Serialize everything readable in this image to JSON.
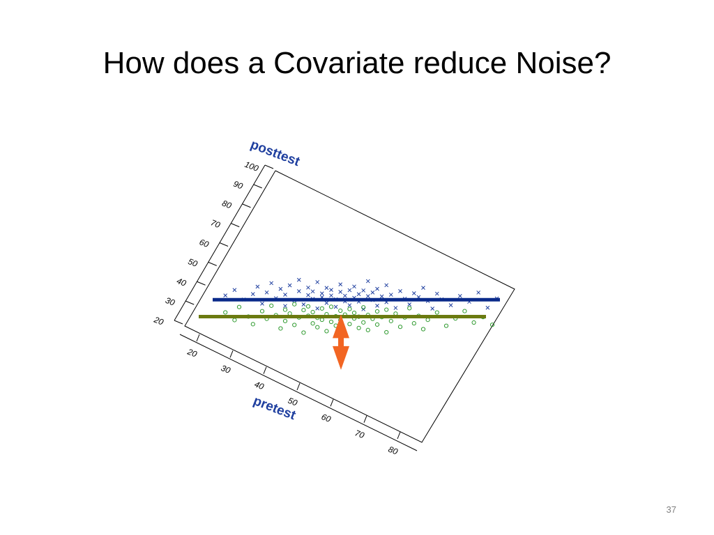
{
  "slide": {
    "title": "How does a Covariate reduce Noise?",
    "page_number": "37"
  },
  "colors": {
    "axis_label": "#1f3f9f",
    "treatment_group": "#1f3f9f",
    "control_group": "#2f9a2f",
    "treatment_line": "#0a2a8a",
    "control_line": "#6b7a10",
    "arrow": "#f26522"
  },
  "chart_data": {
    "type": "scatter",
    "title": "",
    "xlabel": "pretest",
    "ylabel": "posttest",
    "view": "3D rotated projection (pretest axis receding into depth)",
    "x_ticks": [
      "20",
      "30",
      "40",
      "50",
      "60",
      "70",
      "80"
    ],
    "y_ticks": [
      "100",
      "90",
      "80",
      "70",
      "60",
      "50",
      "40",
      "30",
      "20"
    ],
    "xlim": [
      20,
      80
    ],
    "ylim": [
      20,
      100
    ],
    "grid": false,
    "series": [
      {
        "marker": "x",
        "color": "#1f3f9f",
        "mean_posttest": 34,
        "points": [
          [
            22,
            35
          ],
          [
            24,
            38
          ],
          [
            26,
            33
          ],
          [
            28,
            36
          ],
          [
            29,
            40
          ],
          [
            30,
            31
          ],
          [
            31,
            37
          ],
          [
            32,
            42
          ],
          [
            33,
            34
          ],
          [
            34,
            39
          ],
          [
            35,
            30
          ],
          [
            35,
            36
          ],
          [
            36,
            41
          ],
          [
            37,
            33
          ],
          [
            38,
            38
          ],
          [
            38,
            44
          ],
          [
            39,
            31
          ],
          [
            40,
            36
          ],
          [
            40,
            40
          ],
          [
            41,
            34
          ],
          [
            41,
            38
          ],
          [
            42,
            29
          ],
          [
            42,
            43
          ],
          [
            43,
            35
          ],
          [
            43,
            37
          ],
          [
            44,
            32
          ],
          [
            44,
            40
          ],
          [
            45,
            36
          ],
          [
            45,
            39
          ],
          [
            46,
            30
          ],
          [
            46,
            34
          ],
          [
            47,
            38
          ],
          [
            47,
            42
          ],
          [
            48,
            33
          ],
          [
            48,
            36
          ],
          [
            49,
            39
          ],
          [
            49,
            31
          ],
          [
            50,
            35
          ],
          [
            50,
            41
          ],
          [
            51,
            37
          ],
          [
            51,
            33
          ],
          [
            52,
            39
          ],
          [
            52,
            29
          ],
          [
            53,
            36
          ],
          [
            53,
            44
          ],
          [
            54,
            34
          ],
          [
            54,
            38
          ],
          [
            55,
            31
          ],
          [
            55,
            40
          ],
          [
            56,
            36
          ],
          [
            57,
            33
          ],
          [
            57,
            42
          ],
          [
            58,
            37
          ],
          [
            59,
            30
          ],
          [
            60,
            39
          ],
          [
            61,
            35
          ],
          [
            62,
            32
          ],
          [
            63,
            38
          ],
          [
            64,
            36
          ],
          [
            65,
            41
          ],
          [
            66,
            34
          ],
          [
            67,
            30
          ],
          [
            68,
            38
          ],
          [
            69,
            35
          ],
          [
            71,
            32
          ],
          [
            73,
            37
          ],
          [
            75,
            34
          ],
          [
            77,
            39
          ],
          [
            79,
            31
          ],
          [
            81,
            36
          ]
        ]
      },
      {
        "marker": "o",
        "color": "#2f9a2f",
        "mean_posttest": 25,
        "points": [
          [
            22,
            26
          ],
          [
            24,
            22
          ],
          [
            25,
            29
          ],
          [
            27,
            24
          ],
          [
            28,
            20
          ],
          [
            30,
            27
          ],
          [
            31,
            23
          ],
          [
            32,
            30
          ],
          [
            33,
            25
          ],
          [
            34,
            18
          ],
          [
            35,
            28
          ],
          [
            35,
            22
          ],
          [
            36,
            26
          ],
          [
            37,
            31
          ],
          [
            37,
            20
          ],
          [
            38,
            24
          ],
          [
            39,
            28
          ],
          [
            39,
            16
          ],
          [
            40,
            25
          ],
          [
            40,
            30
          ],
          [
            41,
            21
          ],
          [
            41,
            27
          ],
          [
            42,
            24
          ],
          [
            42,
            19
          ],
          [
            43,
            29
          ],
          [
            43,
            23
          ],
          [
            44,
            26
          ],
          [
            44,
            17
          ],
          [
            45,
            22
          ],
          [
            45,
            30
          ],
          [
            46,
            25
          ],
          [
            46,
            20
          ],
          [
            47,
            28
          ],
          [
            47,
            23
          ],
          [
            48,
            26
          ],
          [
            48,
            15
          ],
          [
            49,
            21
          ],
          [
            49,
            29
          ],
          [
            50,
            24
          ],
          [
            50,
            27
          ],
          [
            51,
            19
          ],
          [
            51,
            25
          ],
          [
            52,
            30
          ],
          [
            52,
            22
          ],
          [
            53,
            26
          ],
          [
            53,
            18
          ],
          [
            54,
            24
          ],
          [
            55,
            28
          ],
          [
            55,
            21
          ],
          [
            56,
            25
          ],
          [
            57,
            17
          ],
          [
            57,
            29
          ],
          [
            58,
            23
          ],
          [
            59,
            27
          ],
          [
            60,
            20
          ],
          [
            61,
            25
          ],
          [
            62,
            30
          ],
          [
            63,
            22
          ],
          [
            64,
            26
          ],
          [
            65,
            19
          ],
          [
            66,
            24
          ],
          [
            68,
            28
          ],
          [
            70,
            21
          ],
          [
            72,
            25
          ],
          [
            74,
            29
          ],
          [
            76,
            23
          ],
          [
            78,
            26
          ],
          [
            80,
            22
          ]
        ]
      }
    ],
    "annotations": [
      {
        "type": "horizontal-line",
        "posttest": 34,
        "color": "#0a2a8a"
      },
      {
        "type": "horizontal-line",
        "posttest": 25,
        "color": "#6b7a10"
      },
      {
        "type": "double-arrow",
        "from_posttest": 38,
        "to_posttest": 13,
        "color": "#f26522"
      }
    ]
  }
}
